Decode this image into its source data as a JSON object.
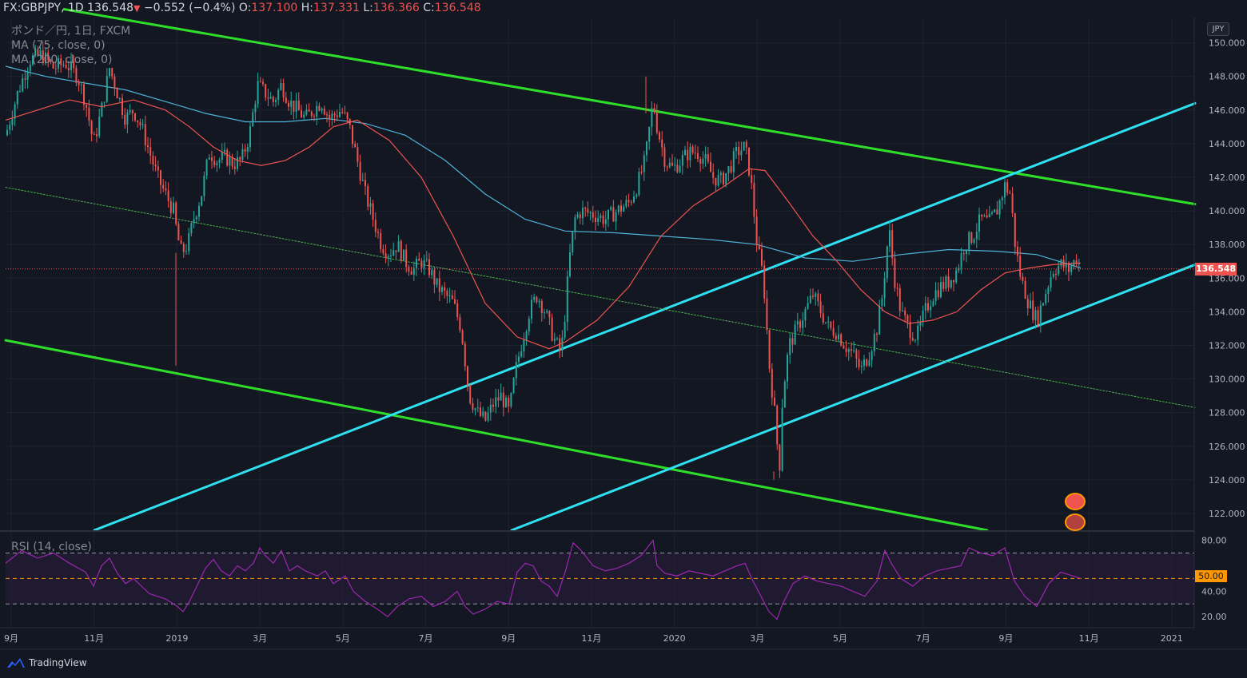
{
  "header": {
    "symbol": "FX:GBPJPY, 1D",
    "last": "136.548",
    "change": "−0.552 (−0.4%)",
    "o_label": "O:",
    "o_val": "137.100",
    "h_label": "H:",
    "h_val": "137.331",
    "l_label": "L:",
    "l_val": "136.366",
    "c_label": "C:",
    "c_val": "136.548"
  },
  "legend": {
    "title": "ポンド／円, 1日, FXCM",
    "ma1": "MA (75, close, 0)",
    "ma2": "MA (200, close, 0)"
  },
  "rsi_label": "RSI (14, close)",
  "currency": "JPY",
  "current_price_label": "136.548",
  "rsi_level_label": "50.00",
  "footer": {
    "brand": "TradingView"
  },
  "colors": {
    "background": "#131722",
    "up": "#26a69a",
    "down": "#ef5350",
    "ma75": "#ef5350",
    "ma200": "#4fb3d9",
    "channel_green": "#2ede2a",
    "channel_cyan": "#2ee0f0",
    "rsi_line": "#9c27b0",
    "rsi_band": "#2a1d3d"
  },
  "chart_data": {
    "type": "candlestick",
    "price_axis": {
      "ylim": [
        121,
        151.5
      ],
      "ticks": [
        "150.000",
        "148.000",
        "146.000",
        "144.000",
        "142.000",
        "140.000",
        "138.000",
        "136.000",
        "134.000",
        "132.000",
        "130.000",
        "128.000",
        "126.000",
        "124.000",
        "122.000"
      ]
    },
    "time_axis": {
      "labels": [
        "9月",
        "11月",
        "2019",
        "3月",
        "5月",
        "7月",
        "9月",
        "11月",
        "2020",
        "3月",
        "5月",
        "7月",
        "9月",
        "11月",
        "2021"
      ]
    },
    "rsi_axis": {
      "ylim": [
        12,
        86
      ],
      "ticks": [
        "80.00",
        "40.00",
        "20.00"
      ],
      "bands": [
        70,
        30
      ],
      "mid": 50
    },
    "price_path": [
      [
        0,
        144.5
      ],
      [
        15,
        147
      ],
      [
        30,
        149
      ],
      [
        45,
        149.3
      ],
      [
        60,
        148.5
      ],
      [
        75,
        148.8
      ],
      [
        90,
        148
      ],
      [
        100,
        146.5
      ],
      [
        110,
        144
      ],
      [
        120,
        146
      ],
      [
        130,
        148.5
      ],
      [
        140,
        147
      ],
      [
        150,
        145.5
      ],
      [
        160,
        146
      ],
      [
        170,
        145
      ],
      [
        180,
        143.5
      ],
      [
        190,
        142
      ],
      [
        200,
        141
      ],
      [
        210,
        140
      ],
      [
        215,
        138.5
      ],
      [
        220,
        137.5
      ],
      [
        228,
        138
      ],
      [
        235,
        139.5
      ],
      [
        245,
        141
      ],
      [
        255,
        143.5
      ],
      [
        265,
        143
      ],
      [
        275,
        143.2
      ],
      [
        285,
        142.8
      ],
      [
        295,
        143
      ],
      [
        305,
        144.5
      ],
      [
        315,
        147.5
      ],
      [
        325,
        147
      ],
      [
        335,
        146.5
      ],
      [
        345,
        147.5
      ],
      [
        355,
        146.5
      ],
      [
        365,
        146
      ],
      [
        375,
        145.5
      ],
      [
        385,
        146
      ],
      [
        395,
        146.5
      ],
      [
        405,
        145.5
      ],
      [
        420,
        146
      ],
      [
        430,
        145
      ],
      [
        440,
        143
      ],
      [
        450,
        141
      ],
      [
        460,
        139.5
      ],
      [
        470,
        138
      ],
      [
        480,
        137.5
      ],
      [
        490,
        138
      ],
      [
        500,
        137
      ],
      [
        510,
        136.5
      ],
      [
        520,
        137
      ],
      [
        530,
        136.5
      ],
      [
        540,
        135.5
      ],
      [
        550,
        135
      ],
      [
        560,
        134.5
      ],
      [
        570,
        133
      ],
      [
        575,
        131
      ],
      [
        580,
        129
      ],
      [
        590,
        128
      ],
      [
        600,
        127.5
      ],
      [
        610,
        128.5
      ],
      [
        620,
        129
      ],
      [
        630,
        128
      ],
      [
        638,
        130.5
      ],
      [
        645,
        132
      ],
      [
        655,
        134
      ],
      [
        665,
        135
      ],
      [
        675,
        134
      ],
      [
        685,
        132.5
      ],
      [
        695,
        131.5
      ],
      [
        700,
        134
      ],
      [
        705,
        137
      ],
      [
        712,
        139.5
      ],
      [
        720,
        140
      ],
      [
        735,
        139.8
      ],
      [
        750,
        139.5
      ],
      [
        765,
        140
      ],
      [
        780,
        140.5
      ],
      [
        790,
        141.5
      ],
      [
        800,
        143
      ],
      [
        810,
        146.5
      ],
      [
        815,
        145
      ],
      [
        825,
        143
      ],
      [
        835,
        142.5
      ],
      [
        845,
        143
      ],
      [
        855,
        143.5
      ],
      [
        865,
        143.5
      ],
      [
        875,
        143
      ],
      [
        885,
        142
      ],
      [
        895,
        141.8
      ],
      [
        905,
        142.5
      ],
      [
        915,
        143.5
      ],
      [
        925,
        143.8
      ],
      [
        932,
        142
      ],
      [
        940,
        138
      ],
      [
        948,
        136
      ],
      [
        955,
        131
      ],
      [
        962,
        128
      ],
      [
        968,
        124.5
      ],
      [
        972,
        129
      ],
      [
        980,
        132
      ],
      [
        990,
        133
      ],
      [
        1000,
        134
      ],
      [
        1010,
        135
      ],
      [
        1020,
        134
      ],
      [
        1030,
        133
      ],
      [
        1040,
        132.8
      ],
      [
        1050,
        132
      ],
      [
        1060,
        131.5
      ],
      [
        1070,
        130.5
      ],
      [
        1080,
        131.5
      ],
      [
        1090,
        133
      ],
      [
        1097,
        135
      ],
      [
        1105,
        139
      ],
      [
        1112,
        136
      ],
      [
        1120,
        134
      ],
      [
        1130,
        133
      ],
      [
        1140,
        132.5
      ],
      [
        1150,
        134
      ],
      [
        1160,
        135
      ],
      [
        1170,
        135.5
      ],
      [
        1180,
        135.8
      ],
      [
        1190,
        136.5
      ],
      [
        1200,
        138
      ],
      [
        1210,
        138.5
      ],
      [
        1220,
        139.5
      ],
      [
        1230,
        139.3
      ],
      [
        1240,
        140
      ],
      [
        1250,
        141.5
      ],
      [
        1257,
        141
      ],
      [
        1263,
        138
      ],
      [
        1270,
        136
      ],
      [
        1280,
        134.5
      ],
      [
        1290,
        133.5
      ],
      [
        1300,
        135
      ],
      [
        1310,
        136.5
      ],
      [
        1320,
        136.8
      ],
      [
        1330,
        136.5
      ],
      [
        1340,
        137.2
      ],
      [
        1345,
        136.55
      ]
    ],
    "ma75_path": [
      [
        0,
        145.4
      ],
      [
        40,
        146
      ],
      [
        80,
        146.6
      ],
      [
        120,
        146.2
      ],
      [
        160,
        146.6
      ],
      [
        200,
        146
      ],
      [
        230,
        145
      ],
      [
        260,
        143.8
      ],
      [
        290,
        143
      ],
      [
        320,
        142.7
      ],
      [
        350,
        143
      ],
      [
        380,
        143.8
      ],
      [
        410,
        145
      ],
      [
        440,
        145.4
      ],
      [
        480,
        144.2
      ],
      [
        520,
        142
      ],
      [
        560,
        138.5
      ],
      [
        600,
        134.5
      ],
      [
        640,
        132.5
      ],
      [
        680,
        131.8
      ],
      [
        700,
        132.2
      ],
      [
        740,
        133.5
      ],
      [
        780,
        135.5
      ],
      [
        820,
        138.5
      ],
      [
        860,
        140.3
      ],
      [
        900,
        141.5
      ],
      [
        930,
        142.5
      ],
      [
        950,
        142.4
      ],
      [
        980,
        140.5
      ],
      [
        1010,
        138.5
      ],
      [
        1040,
        137
      ],
      [
        1070,
        135.3
      ],
      [
        1100,
        134
      ],
      [
        1130,
        133.3
      ],
      [
        1160,
        133.5
      ],
      [
        1190,
        134
      ],
      [
        1220,
        135.3
      ],
      [
        1250,
        136.3
      ],
      [
        1280,
        136.6
      ],
      [
        1310,
        136.8
      ],
      [
        1345,
        136.9
      ]
    ],
    "ma200_path": [
      [
        0,
        148.6
      ],
      [
        50,
        148
      ],
      [
        100,
        147.6
      ],
      [
        150,
        147.2
      ],
      [
        200,
        146.5
      ],
      [
        250,
        145.8
      ],
      [
        300,
        145.3
      ],
      [
        350,
        145.3
      ],
      [
        400,
        145.5
      ],
      [
        450,
        145.2
      ],
      [
        500,
        144.5
      ],
      [
        550,
        143
      ],
      [
        600,
        141
      ],
      [
        650,
        139.5
      ],
      [
        700,
        138.8
      ],
      [
        760,
        138.7
      ],
      [
        820,
        138.5
      ],
      [
        880,
        138.3
      ],
      [
        940,
        138
      ],
      [
        1000,
        137.2
      ],
      [
        1060,
        137
      ],
      [
        1120,
        137.4
      ],
      [
        1180,
        137.7
      ],
      [
        1240,
        137.6
      ],
      [
        1290,
        137.4
      ],
      [
        1345,
        136.6
      ]
    ],
    "trendlines": [
      {
        "color_key": "channel_green",
        "from": [
          80,
          152
        ],
        "to": [
          1495,
          140.4
        ]
      },
      {
        "color_key": "channel_green",
        "from": [
          7,
          132.3
        ],
        "to": [
          1235,
          121
        ]
      },
      {
        "color_key": "channel_cyan",
        "from": [
          118,
          121
        ],
        "to": [
          1495,
          146.4
        ]
      },
      {
        "color_key": "channel_cyan",
        "from": [
          640,
          121
        ],
        "to": [
          1495,
          136.8
        ]
      },
      {
        "color_key": "dotted_green",
        "from": [
          7,
          141.4
        ],
        "to": [
          1495,
          128.3
        ]
      }
    ],
    "rsi_path": [
      [
        0,
        62
      ],
      [
        20,
        72
      ],
      [
        40,
        66
      ],
      [
        60,
        70
      ],
      [
        80,
        62
      ],
      [
        100,
        55
      ],
      [
        110,
        44
      ],
      [
        120,
        60
      ],
      [
        130,
        66
      ],
      [
        140,
        54
      ],
      [
        150,
        46
      ],
      [
        160,
        50
      ],
      [
        170,
        44
      ],
      [
        180,
        38
      ],
      [
        200,
        34
      ],
      [
        215,
        28
      ],
      [
        222,
        24
      ],
      [
        230,
        32
      ],
      [
        240,
        45
      ],
      [
        250,
        58
      ],
      [
        260,
        65
      ],
      [
        270,
        56
      ],
      [
        280,
        52
      ],
      [
        290,
        60
      ],
      [
        300,
        56
      ],
      [
        310,
        62
      ],
      [
        318,
        74
      ],
      [
        325,
        68
      ],
      [
        335,
        62
      ],
      [
        345,
        72
      ],
      [
        355,
        56
      ],
      [
        365,
        60
      ],
      [
        375,
        56
      ],
      [
        390,
        52
      ],
      [
        400,
        56
      ],
      [
        410,
        46
      ],
      [
        425,
        52
      ],
      [
        435,
        40
      ],
      [
        450,
        32
      ],
      [
        465,
        26
      ],
      [
        478,
        20
      ],
      [
        490,
        28
      ],
      [
        505,
        34
      ],
      [
        520,
        36
      ],
      [
        535,
        28
      ],
      [
        550,
        32
      ],
      [
        565,
        40
      ],
      [
        575,
        28
      ],
      [
        585,
        22
      ],
      [
        600,
        26
      ],
      [
        615,
        32
      ],
      [
        630,
        30
      ],
      [
        640,
        55
      ],
      [
        650,
        62
      ],
      [
        660,
        60
      ],
      [
        670,
        48
      ],
      [
        680,
        44
      ],
      [
        690,
        36
      ],
      [
        700,
        55
      ],
      [
        710,
        78
      ],
      [
        720,
        72
      ],
      [
        735,
        60
      ],
      [
        750,
        56
      ],
      [
        765,
        58
      ],
      [
        780,
        62
      ],
      [
        795,
        68
      ],
      [
        810,
        80
      ],
      [
        815,
        60
      ],
      [
        825,
        54
      ],
      [
        840,
        52
      ],
      [
        855,
        56
      ],
      [
        870,
        54
      ],
      [
        885,
        52
      ],
      [
        900,
        56
      ],
      [
        915,
        60
      ],
      [
        925,
        62
      ],
      [
        935,
        48
      ],
      [
        945,
        36
      ],
      [
        955,
        24
      ],
      [
        965,
        18
      ],
      [
        972,
        30
      ],
      [
        985,
        46
      ],
      [
        1000,
        52
      ],
      [
        1015,
        48
      ],
      [
        1030,
        46
      ],
      [
        1045,
        44
      ],
      [
        1060,
        40
      ],
      [
        1075,
        36
      ],
      [
        1090,
        48
      ],
      [
        1100,
        72
      ],
      [
        1108,
        62
      ],
      [
        1120,
        50
      ],
      [
        1135,
        44
      ],
      [
        1150,
        52
      ],
      [
        1165,
        56
      ],
      [
        1180,
        58
      ],
      [
        1195,
        60
      ],
      [
        1205,
        74
      ],
      [
        1220,
        70
      ],
      [
        1235,
        68
      ],
      [
        1250,
        74
      ],
      [
        1262,
        48
      ],
      [
        1275,
        36
      ],
      [
        1290,
        28
      ],
      [
        1305,
        46
      ],
      [
        1320,
        55
      ],
      [
        1335,
        52
      ],
      [
        1345,
        50
      ]
    ]
  }
}
